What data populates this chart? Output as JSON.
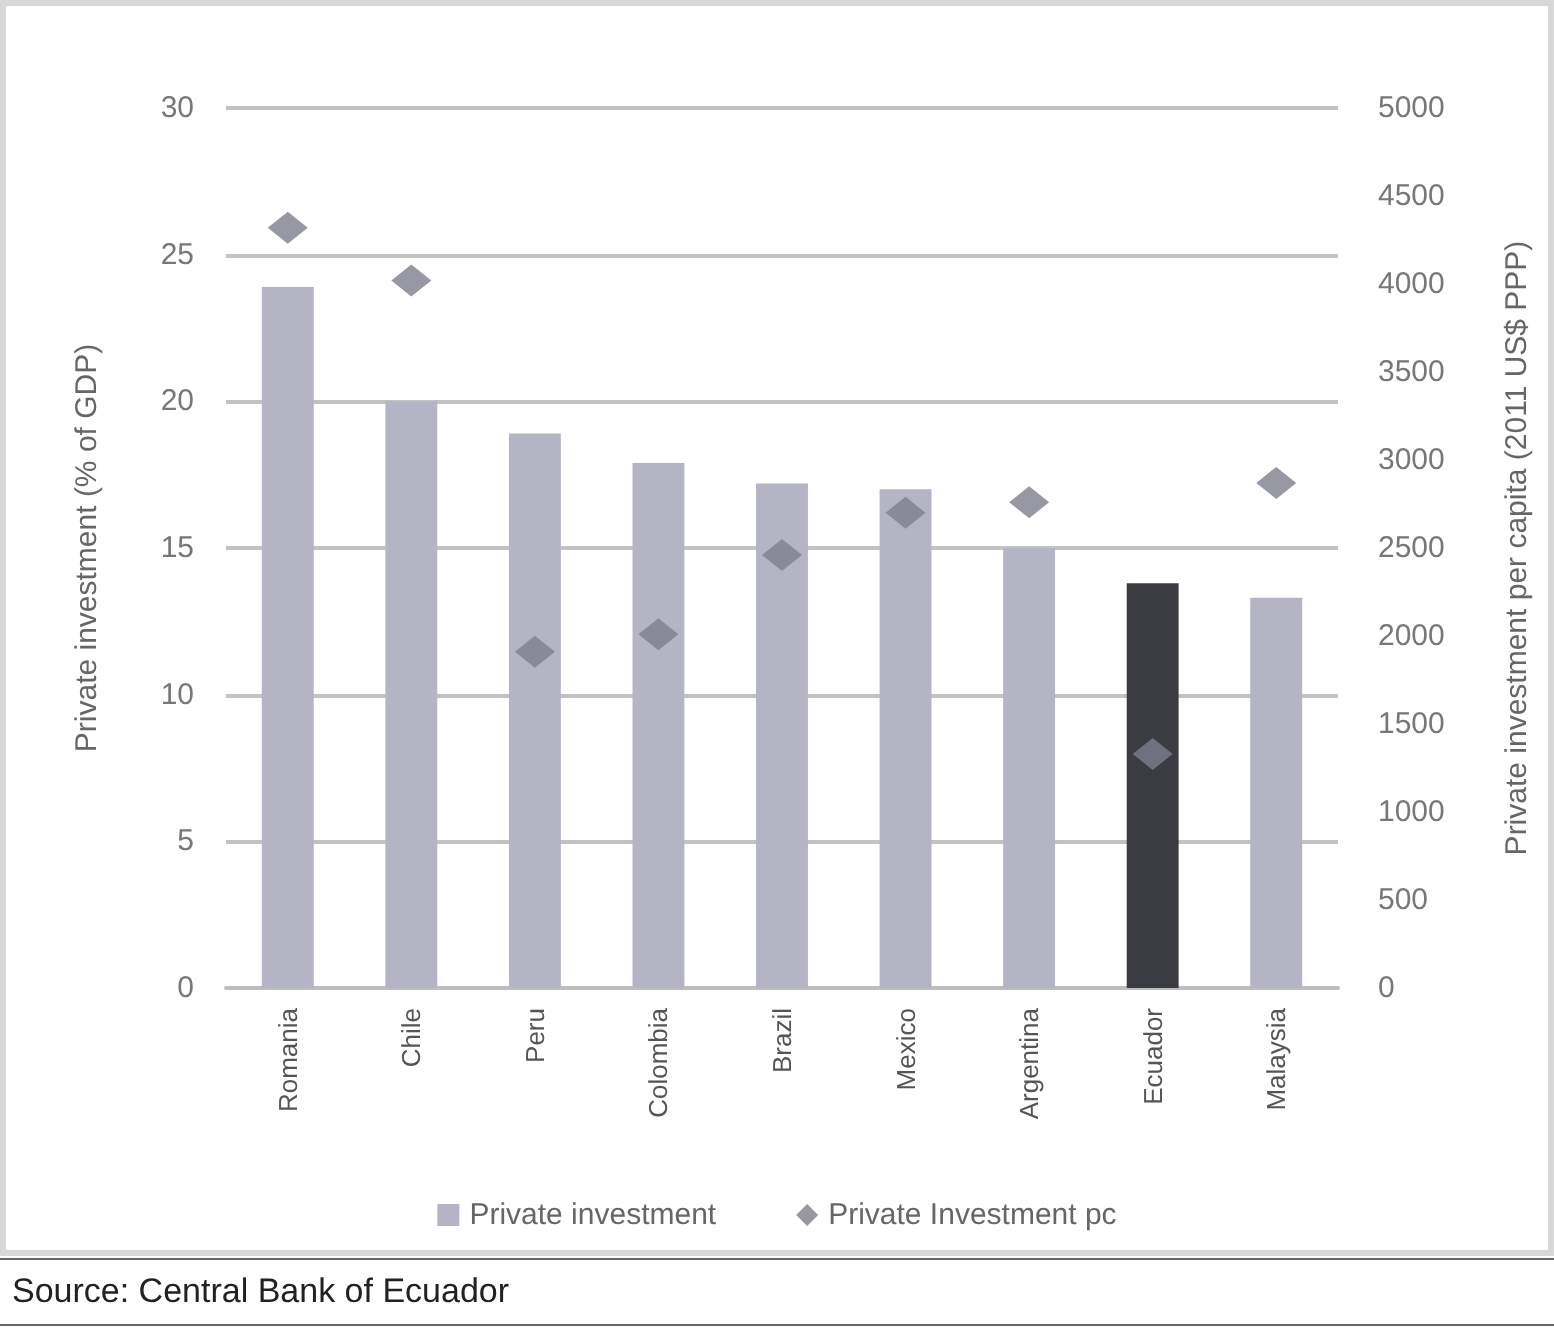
{
  "chart_data": {
    "type": "bar",
    "ylabel": "Private investment (% of GDP)",
    "y2label": "Private investment per capita (2011 US$ PPP)",
    "categories": [
      "Romania",
      "Chile",
      "Peru",
      "Colombia",
      "Brazil",
      "Mexico",
      "Argentina",
      "Ecuador",
      "Malaysia"
    ],
    "series": [
      {
        "name": "Private investment",
        "color": "#b4b4c4",
        "colors": [
          "#b4b4c4",
          "#b4b4c4",
          "#b4b4c4",
          "#b4b4c4",
          "#b4b4c4",
          "#b4b4c4",
          "#b4b4c4",
          "#3b3c42",
          "#b4b4c4"
        ],
        "values": [
          23.9,
          20,
          18.9,
          17.9,
          17.2,
          17,
          15,
          13.8,
          13.3
        ]
      },
      {
        "name": "Private Investment pc",
        "type": "scatter",
        "axis": "y2",
        "color": "#7e7e8f",
        "values": [
          4320,
          4020,
          1910,
          2010,
          2460,
          2700,
          2760,
          1330,
          2870
        ]
      }
    ],
    "ylim": [
      0,
      30
    ],
    "yticks": [
      0,
      5,
      10,
      15,
      20,
      25,
      30
    ],
    "y2lim": [
      0,
      5000
    ],
    "y2ticks": [
      0,
      500,
      1000,
      1500,
      2000,
      2500,
      3000,
      3500,
      4000,
      4500,
      5000
    ],
    "grid": "y",
    "legend": "bottom",
    "marker": "diamond",
    "annotations": [
      "Source: Central Bank of Ecuador"
    ]
  }
}
